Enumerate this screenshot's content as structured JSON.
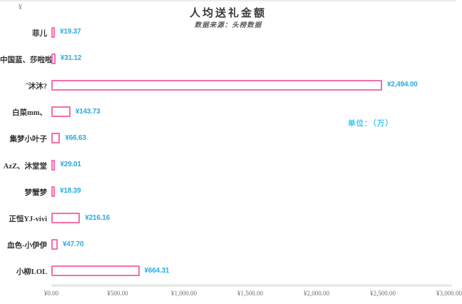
{
  "page": {
    "title": "人均送礼金额",
    "subtitle": "数据来源：头榜数据",
    "unit_label": "单位：（万）",
    "y_axis_symbol": "¥"
  },
  "colors": {
    "bar_stroke": "#F36FA8",
    "bar_fill": "#FFFFFF",
    "value_text": "#29ABE2",
    "unit_text": "#3EC6F0",
    "title_text": "#3A3A3A",
    "subtitle_text": "#5E5E5E",
    "category_text": "#333333",
    "tick_text": "#6F6F6F",
    "axis_line": "#EBEBEB"
  },
  "chart_data": {
    "type": "bar",
    "orientation": "horizontal",
    "title": "人均送礼金额",
    "subtitle": "数据来源：头榜数据",
    "unit": "单位：（万）",
    "categories": [
      "菲儿",
      "中国蓝、莎啦啦",
      "˜沐沐?",
      "白菜mm、",
      "集梦小叶子",
      "AzZ、沐堂堂",
      "梦蟹梦",
      "正恒YJ-vivi",
      "血色-小伊伊",
      "小柳LOL"
    ],
    "values": [
      19.37,
      31.12,
      2494.0,
      143.73,
      66.63,
      29.01,
      18.39,
      216.16,
      47.7,
      664.31
    ],
    "value_labels": [
      "¥19.37",
      "¥31.12",
      "¥2,494.00",
      "¥143.73",
      "¥66.63",
      "¥29.01",
      "¥18.39",
      "¥216.16",
      "¥47.70",
      "¥664.31"
    ],
    "xlim": [
      0,
      3000
    ],
    "x_ticks": [
      0,
      500,
      1000,
      1500,
      2000,
      2500,
      3000
    ],
    "x_tick_labels": [
      "¥0.00",
      "¥500.00",
      "¥1,000.00",
      "¥1,500.00",
      "¥2,000.00",
      "¥2,500.00",
      "¥3,000.00"
    ],
    "grid": false,
    "legend": false,
    "bar_style": "outlined"
  }
}
